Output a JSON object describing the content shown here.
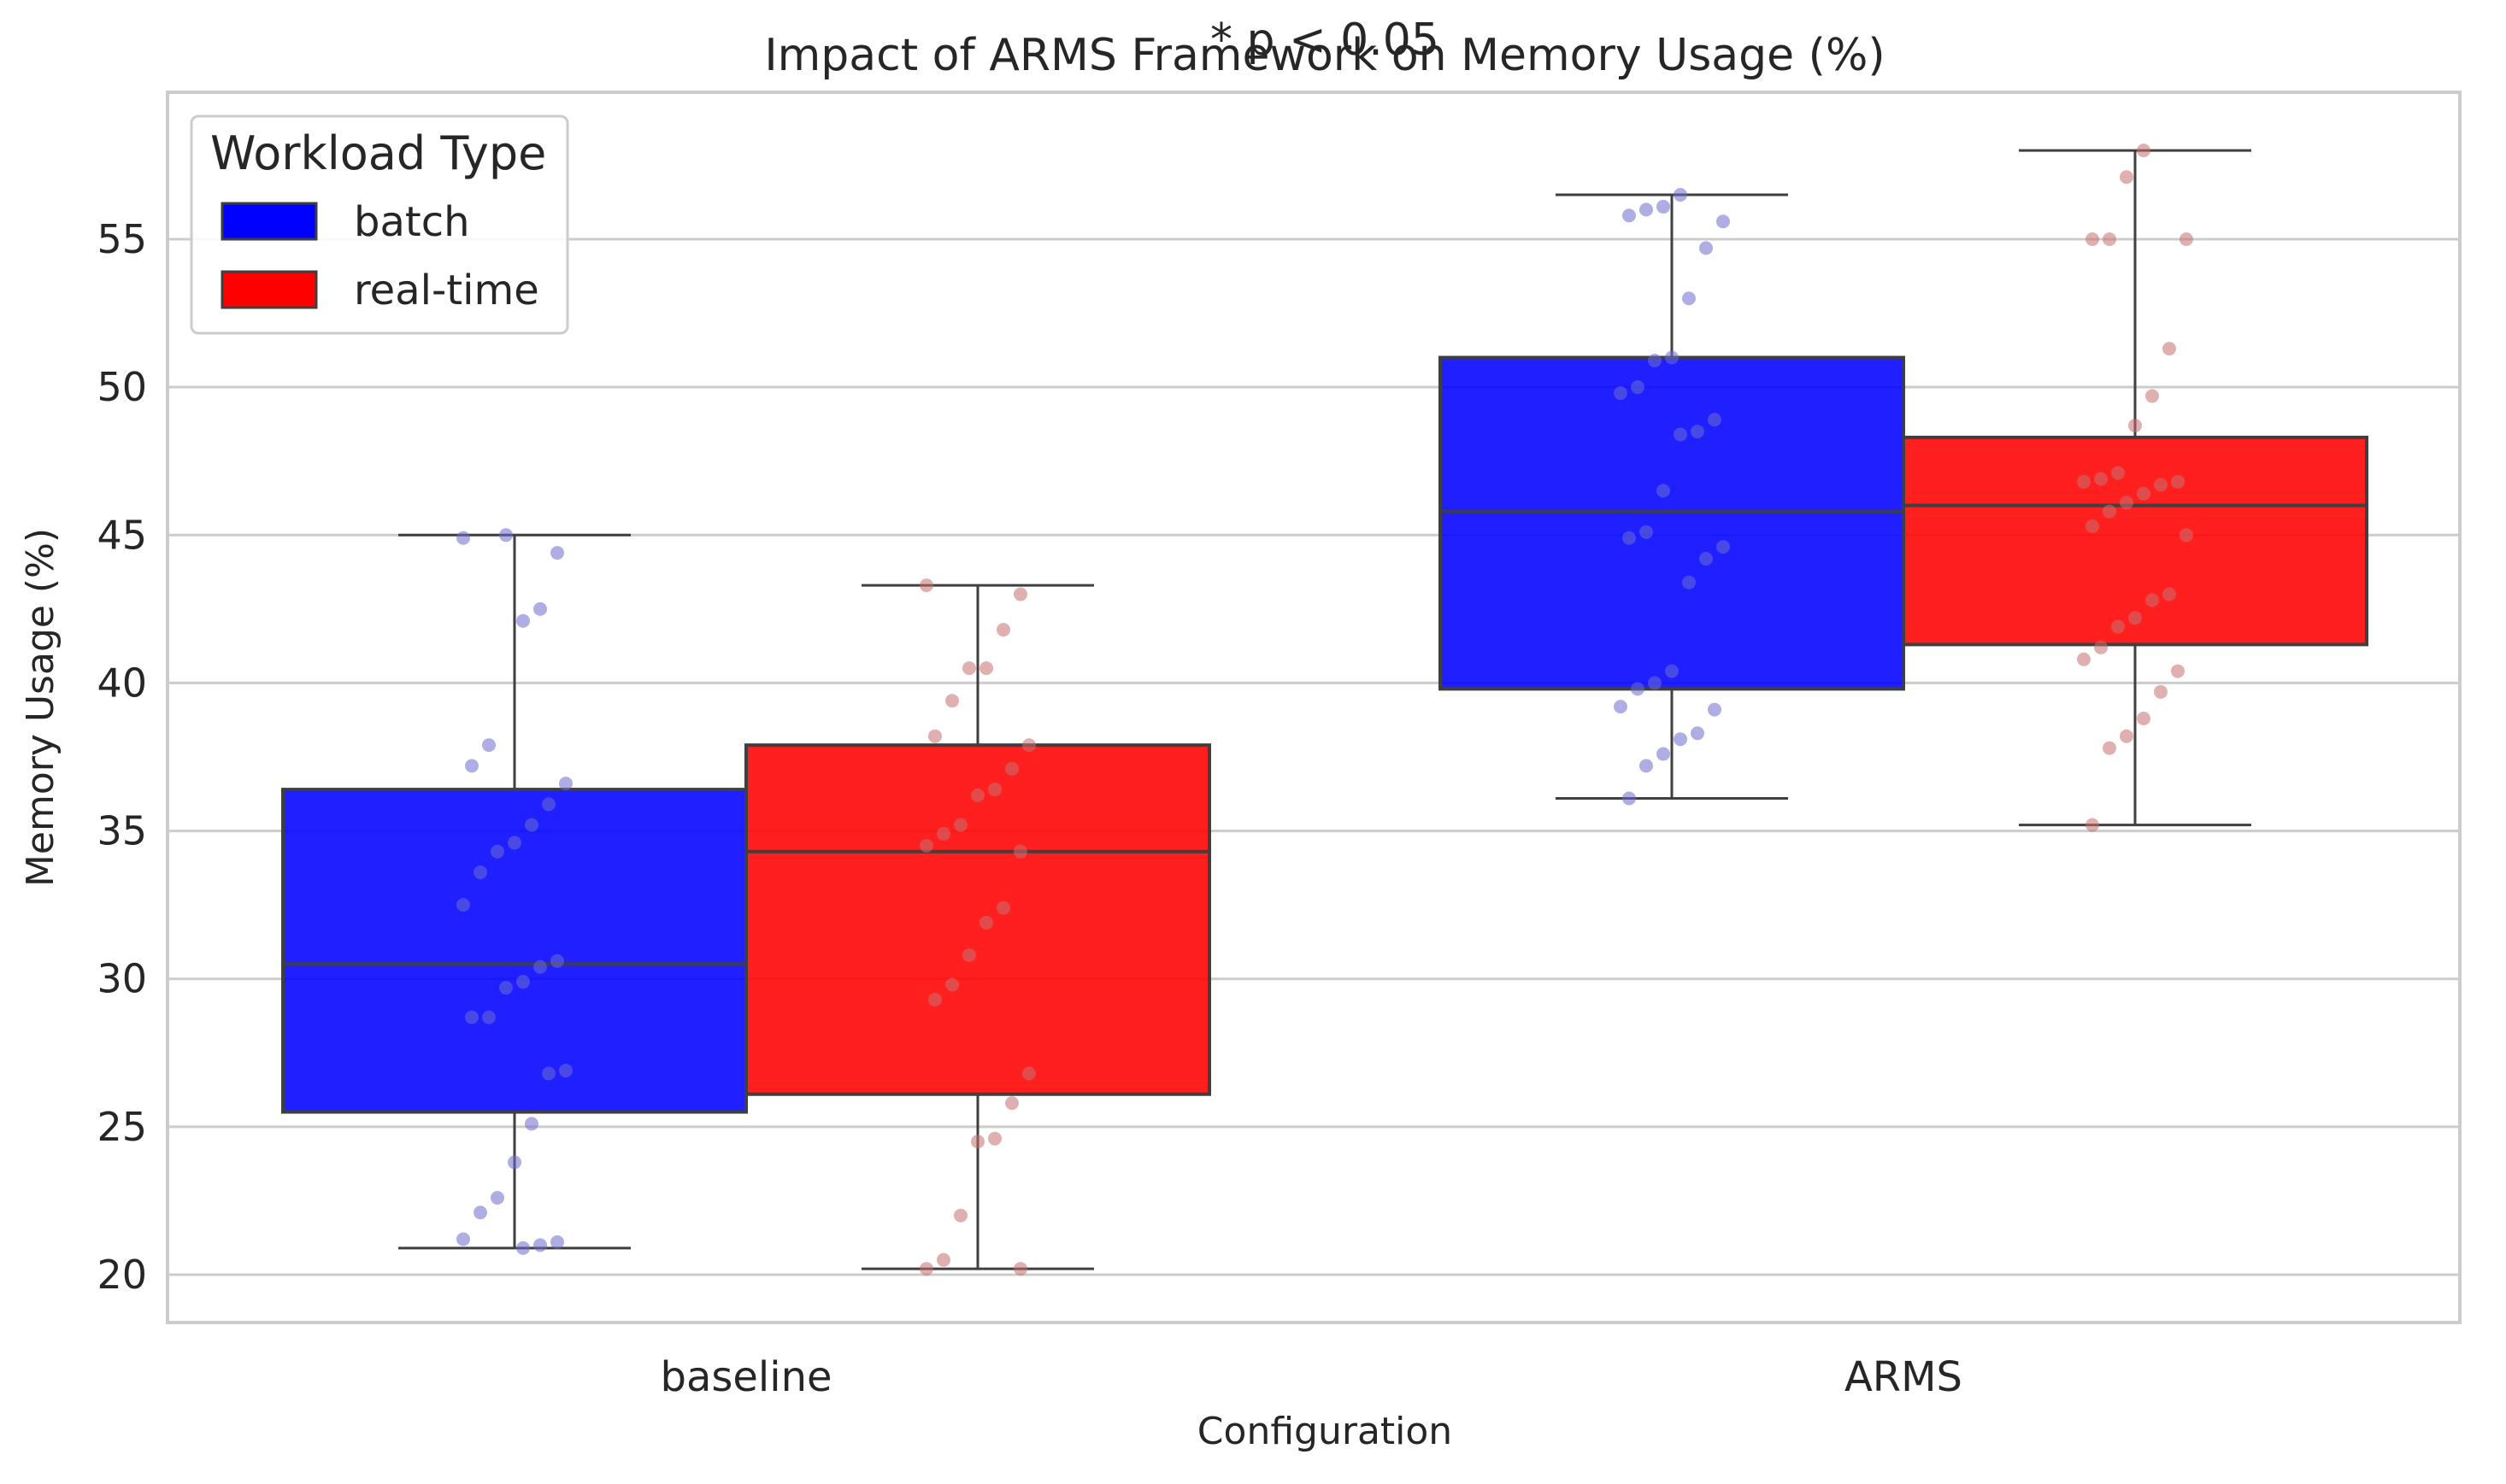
{
  "chart_data": {
    "type": "box",
    "title": "Impact of ARMS Framework on Memory Usage (%)",
    "annotation": "* p < 0.05",
    "xlabel": "Configuration",
    "ylabel": "Memory Usage (%)",
    "categories": [
      "baseline",
      "ARMS"
    ],
    "ylim": [
      18.3,
      59.6
    ],
    "yticks": [
      20,
      25,
      30,
      35,
      40,
      45,
      50,
      55
    ],
    "grid": "horizontal",
    "legend": {
      "title": "Workload Type",
      "placement": "top-left"
    },
    "series": [
      {
        "name": "batch",
        "color": "#0000ff",
        "boxes": [
          {
            "category": "baseline",
            "whisker_low": 20.9,
            "q1": 25.5,
            "median": 30.5,
            "q3": 36.4,
            "whisker_high": 45.0
          },
          {
            "category": "ARMS",
            "whisker_low": 36.1,
            "q1": 39.8,
            "median": 45.8,
            "q3": 51.0,
            "whisker_high": 56.5
          }
        ],
        "points": {
          "baseline": [
            44.9,
            44.4,
            42.5,
            42.1,
            45.0,
            37.9,
            37.2,
            36.6,
            35.9,
            35.2,
            34.6,
            34.3,
            33.6,
            32.5,
            30.6,
            30.4,
            29.9,
            29.7,
            28.7,
            28.7,
            26.9,
            26.8,
            25.1,
            23.8,
            22.6,
            22.1,
            21.2,
            21.1,
            21.0,
            20.9
          ],
          "ARMS": [
            56.5,
            56.1,
            56.0,
            55.8,
            55.6,
            54.7,
            53.0,
            51.0,
            50.9,
            50.0,
            49.8,
            48.9,
            48.5,
            48.4,
            46.5,
            45.1,
            44.9,
            44.6,
            44.2,
            43.4,
            40.4,
            40.0,
            39.8,
            39.2,
            39.1,
            38.3,
            38.1,
            37.6,
            37.2,
            36.1
          ]
        }
      },
      {
        "name": "real-time",
        "color": "#ff0000",
        "boxes": [
          {
            "category": "baseline",
            "whisker_low": 20.2,
            "q1": 26.1,
            "median": 34.3,
            "q3": 37.9,
            "whisker_high": 43.3
          },
          {
            "category": "ARMS",
            "whisker_low": 35.2,
            "q1": 41.3,
            "median": 46.0,
            "q3": 48.3,
            "whisker_high": 58.0
          }
        ],
        "points": {
          "baseline": [
            43.3,
            43.0,
            41.8,
            40.5,
            40.5,
            39.4,
            38.2,
            37.9,
            37.1,
            36.4,
            36.2,
            35.2,
            34.9,
            34.5,
            34.3,
            32.4,
            31.9,
            30.8,
            29.8,
            29.3,
            26.8,
            25.8,
            24.6,
            24.5,
            22.0,
            20.5,
            20.2,
            20.2
          ],
          "ARMS": [
            58.0,
            57.1,
            55.0,
            55.0,
            55.0,
            51.3,
            49.7,
            48.7,
            47.1,
            46.9,
            46.8,
            46.8,
            46.7,
            46.4,
            46.1,
            45.8,
            45.3,
            45.0,
            43.0,
            42.8,
            42.2,
            41.9,
            41.2,
            40.8,
            40.4,
            39.7,
            38.8,
            38.2,
            37.8,
            35.2
          ]
        }
      }
    ]
  }
}
